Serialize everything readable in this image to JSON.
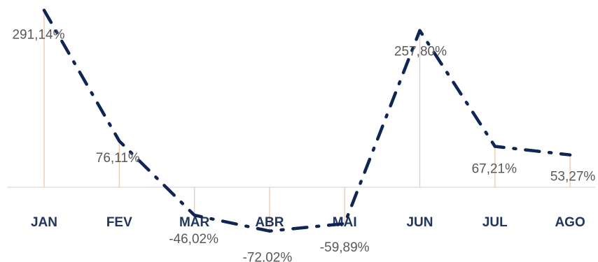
{
  "chart_data": {
    "type": "line",
    "title": "",
    "xlabel": "",
    "ylabel": "",
    "categories": [
      "JAN",
      "FEV",
      "MAR",
      "ABR",
      "MAI",
      "JUN",
      "JUL",
      "AGO"
    ],
    "series": [
      {
        "values": [
          291.14,
          76.11,
          -46.02,
          -72.02,
          -59.89,
          257.8,
          67.21,
          53.27
        ],
        "labels": [
          "291,14%",
          "76,11%",
          "-46,02%",
          "-72,02%",
          "-59,89%",
          "257,80%",
          "67,21%",
          "53,27%"
        ],
        "line_style": "dash-dot",
        "color": "#0d2557"
      }
    ],
    "drop_lines": true,
    "drop_line_color": "#f4c7a8",
    "axis_color": "#d9d9d9",
    "category_label_color": "#1f3564",
    "data_label_color": "#595959",
    "ylim": [
      -75,
      295
    ],
    "grid": false,
    "legend": "none"
  }
}
